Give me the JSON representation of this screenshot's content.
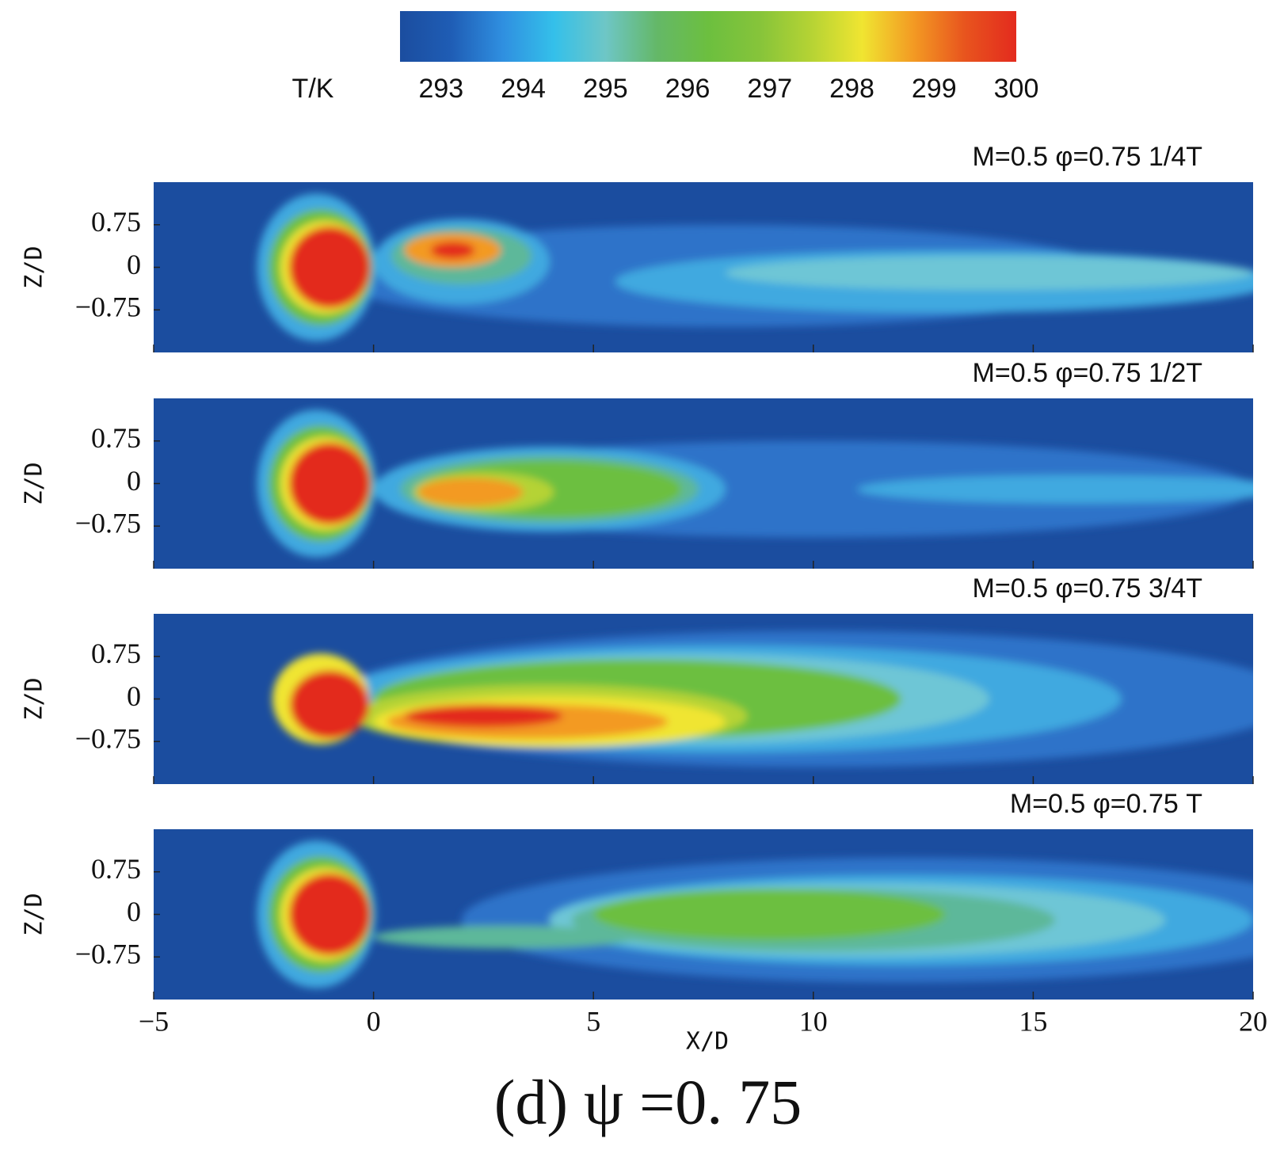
{
  "colorbar": {
    "label": "T/K",
    "lim": [
      292.5,
      300
    ],
    "ticks": [
      293,
      294,
      295,
      296,
      297,
      298,
      299,
      300
    ],
    "colormap": [
      "#1b4d9f",
      "#1f5db5",
      "#2f8fe0",
      "#34c0ea",
      "#6ec6c6",
      "#64b868",
      "#6cbf3f",
      "#86c43a",
      "#b5d334",
      "#f0e531",
      "#f39a23",
      "#e8541e",
      "#e32b1e"
    ]
  },
  "chart_data": [
    {
      "type": "contour",
      "title": "M=0.5  φ=0.75  1/4T",
      "ylabel": "Z/D",
      "ylim": [
        -1.5,
        1.5
      ],
      "yticks": [
        0.75,
        0,
        {
          "value": -0.75,
          "label": "−0.75"
        }
      ]
    },
    {
      "type": "contour",
      "title": "M=0.5  φ=0.75  1/2T",
      "ylabel": "Z/D",
      "ylim": [
        -1.5,
        1.5
      ],
      "yticks": [
        0.75,
        0,
        {
          "value": -0.75,
          "label": "−0.75"
        }
      ]
    },
    {
      "type": "contour",
      "title": "M=0.5  φ=0.75  3/4T",
      "ylabel": "Z/D",
      "ylim": [
        -1.5,
        1.5
      ],
      "yticks": [
        0.75,
        0,
        {
          "value": -0.75,
          "label": "−0.75"
        }
      ]
    },
    {
      "type": "contour",
      "title": "M=0.5  φ=0.75     T",
      "ylabel": "Z/D",
      "ylim": [
        -1.5,
        1.5
      ],
      "yticks": [
        0.75,
        0,
        {
          "value": -0.75,
          "label": "−0.75"
        }
      ],
      "xlabel": "X/D",
      "xlim": [
        -5,
        20
      ],
      "xticks": [
        {
          "value": -5,
          "label": "−5"
        },
        0,
        5,
        10,
        15,
        20
      ]
    }
  ],
  "caption": "(d) ψ =0. 75"
}
